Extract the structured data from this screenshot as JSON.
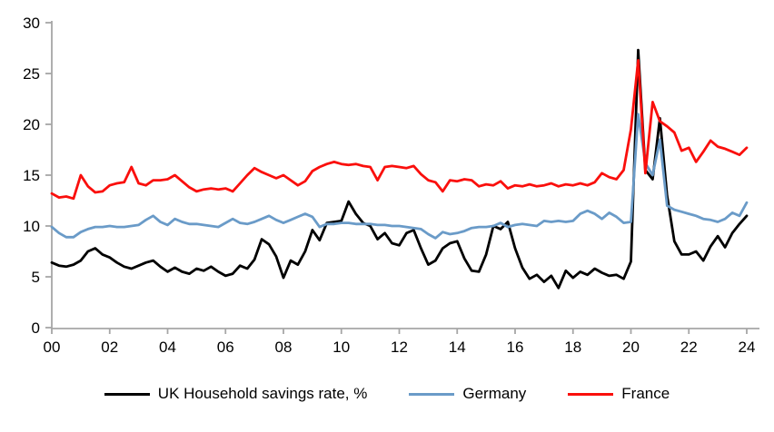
{
  "chart_data": {
    "type": "line",
    "title": "",
    "xlabel": "",
    "ylabel": "",
    "ylim": [
      0,
      30
    ],
    "grid": false,
    "legend_position": "bottom",
    "frequency": "quarterly",
    "x_tick_labels": [
      "00",
      "02",
      "04",
      "06",
      "08",
      "10",
      "12",
      "14",
      "16",
      "18",
      "20",
      "22",
      "24"
    ],
    "y_ticks": [
      0,
      5,
      10,
      15,
      20,
      25,
      30
    ],
    "series": [
      {
        "name": "UK Household savings rate, %",
        "color": "#000000",
        "values": [
          6.4,
          6.1,
          6.0,
          6.2,
          6.6,
          7.5,
          7.8,
          7.2,
          6.9,
          6.4,
          6.0,
          5.8,
          6.1,
          6.4,
          6.6,
          6.0,
          5.5,
          5.9,
          5.5,
          5.3,
          5.8,
          5.6,
          6.0,
          5.5,
          5.1,
          5.3,
          6.1,
          5.8,
          6.7,
          8.7,
          8.2,
          7.0,
          4.9,
          6.6,
          6.2,
          7.5,
          9.6,
          8.6,
          10.3,
          10.4,
          10.5,
          12.4,
          11.2,
          10.3,
          10.0,
          8.7,
          9.3,
          8.3,
          8.1,
          9.3,
          9.6,
          7.8,
          6.2,
          6.6,
          7.8,
          8.3,
          8.5,
          6.8,
          5.6,
          5.5,
          7.2,
          10.0,
          9.7,
          10.4,
          7.8,
          5.9,
          4.8,
          5.2,
          4.5,
          5.1,
          3.9,
          5.6,
          4.9,
          5.5,
          5.2,
          5.8,
          5.4,
          5.1,
          5.2,
          4.8,
          6.5,
          27.3,
          15.5,
          14.6,
          20.6,
          13.0,
          8.5,
          7.2,
          7.2,
          7.5,
          6.6,
          8.0,
          9.0,
          7.9,
          9.3,
          10.2,
          11.0
        ]
      },
      {
        "name": "Germany",
        "color": "#6A9BC8",
        "values": [
          9.9,
          9.3,
          8.9,
          8.9,
          9.4,
          9.7,
          9.9,
          9.9,
          10.0,
          9.9,
          9.9,
          10.0,
          10.1,
          10.6,
          11.0,
          10.4,
          10.1,
          10.7,
          10.4,
          10.2,
          10.2,
          10.1,
          10.0,
          9.9,
          10.3,
          10.7,
          10.3,
          10.2,
          10.4,
          10.7,
          11.0,
          10.6,
          10.3,
          10.6,
          10.9,
          11.2,
          10.9,
          9.9,
          10.2,
          10.2,
          10.3,
          10.3,
          10.2,
          10.2,
          10.2,
          10.1,
          10.1,
          10.0,
          10.0,
          9.9,
          9.8,
          9.7,
          9.2,
          8.8,
          9.4,
          9.2,
          9.3,
          9.5,
          9.8,
          9.9,
          9.9,
          10.0,
          10.3,
          9.9,
          10.1,
          10.2,
          10.1,
          10.0,
          10.5,
          10.4,
          10.5,
          10.4,
          10.5,
          11.2,
          11.5,
          11.2,
          10.7,
          11.3,
          10.9,
          10.3,
          10.4,
          21.0,
          16.2,
          15.0,
          18.5,
          12.0,
          11.6,
          11.4,
          11.2,
          11.0,
          10.7,
          10.6,
          10.4,
          10.7,
          11.3,
          11.0,
          12.3
        ]
      },
      {
        "name": "France",
        "color": "#FA0F0C",
        "values": [
          13.2,
          12.8,
          12.9,
          12.7,
          15.0,
          13.9,
          13.3,
          13.4,
          14.0,
          14.2,
          14.3,
          15.8,
          14.2,
          14.0,
          14.5,
          14.5,
          14.6,
          15.0,
          14.4,
          13.8,
          13.4,
          13.6,
          13.7,
          13.6,
          13.7,
          13.4,
          14.2,
          15.0,
          15.7,
          15.3,
          15.0,
          14.7,
          15.0,
          14.5,
          14.0,
          14.4,
          15.4,
          15.8,
          16.1,
          16.3,
          16.1,
          16.0,
          16.1,
          15.9,
          15.8,
          14.5,
          15.8,
          15.9,
          15.8,
          15.7,
          15.9,
          15.1,
          14.5,
          14.3,
          13.4,
          14.5,
          14.4,
          14.6,
          14.5,
          13.9,
          14.1,
          14.0,
          14.4,
          13.7,
          14.0,
          13.9,
          14.1,
          13.9,
          14.0,
          14.2,
          13.9,
          14.1,
          14.0,
          14.2,
          14.0,
          14.3,
          15.2,
          14.8,
          14.6,
          15.5,
          19.5,
          26.3,
          15.2,
          22.2,
          20.3,
          19.8,
          19.2,
          17.4,
          17.7,
          16.3,
          17.3,
          18.4,
          17.8,
          17.6,
          17.3,
          17.0,
          17.7
        ]
      }
    ]
  },
  "legend": {
    "items": [
      {
        "label": "UK Household savings rate, %",
        "color": "#000000"
      },
      {
        "label": "Germany",
        "color": "#6A9BC8"
      },
      {
        "label": "France",
        "color": "#FA0F0C"
      }
    ]
  },
  "colors": {
    "background": "#FFFFFF",
    "axis": "#A6A6A6",
    "tick_text": "#000000"
  }
}
